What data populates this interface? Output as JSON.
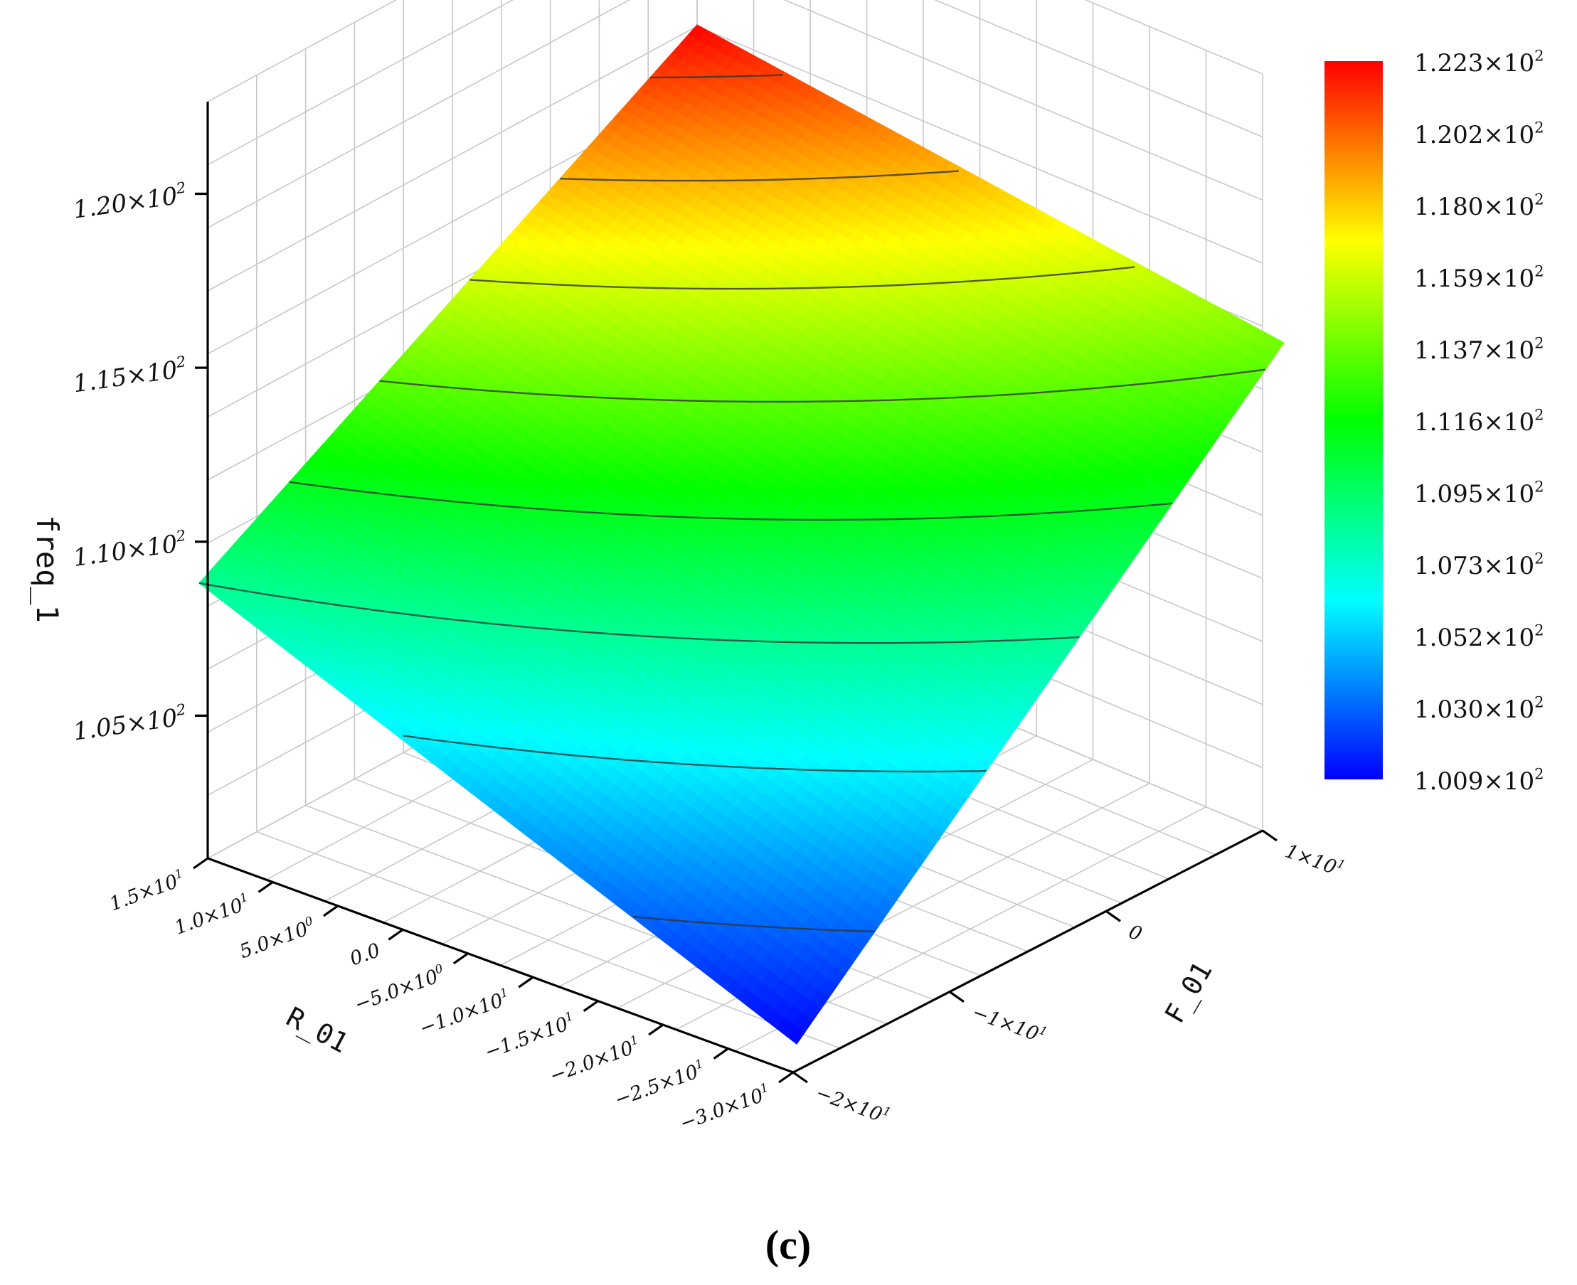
{
  "chart_data": {
    "type": "surface3d",
    "panel_label": "(c)",
    "zlabel": "freq_1",
    "xlabel": "R_01",
    "ylabel": "F_01",
    "z_ticks": [
      {
        "mant": "1.05",
        "exp": "2",
        "value": 105
      },
      {
        "mant": "1.10",
        "exp": "2",
        "value": 110
      },
      {
        "mant": "1.15",
        "exp": "2",
        "value": 115
      },
      {
        "mant": "1.20",
        "exp": "2",
        "value": 120
      }
    ],
    "r_ticks": [
      {
        "mant": "1.5",
        "exp": "1",
        "value": 15
      },
      {
        "mant": "1.0",
        "exp": "1",
        "value": 10
      },
      {
        "mant": "5.0",
        "exp": "0",
        "value": 5
      },
      {
        "mant": "0.0",
        "exp": "",
        "value": 0
      },
      {
        "mant": "−5.0",
        "exp": "0",
        "value": -5
      },
      {
        "mant": "−1.0",
        "exp": "1",
        "value": -10
      },
      {
        "mant": "−1.5",
        "exp": "1",
        "value": -15
      },
      {
        "mant": "−2.0",
        "exp": "1",
        "value": -20
      },
      {
        "mant": "−2.5",
        "exp": "1",
        "value": -25
      },
      {
        "mant": "−3.0",
        "exp": "1",
        "value": -30
      }
    ],
    "f_ticks": [
      {
        "mant": "1",
        "exp": "1",
        "value": 10
      },
      {
        "mant": "0",
        "exp": "",
        "value": 0
      },
      {
        "mant": "−1",
        "exp": "1",
        "value": -10
      },
      {
        "mant": "−2",
        "exp": "1",
        "value": -20
      }
    ],
    "colorbar": {
      "ticks": [
        {
          "mant": "1.223",
          "exp": "2",
          "value": 122.3
        },
        {
          "mant": "1.202",
          "exp": "2",
          "value": 120.2
        },
        {
          "mant": "1.180",
          "exp": "2",
          "value": 118.0
        },
        {
          "mant": "1.159",
          "exp": "2",
          "value": 115.9
        },
        {
          "mant": "1.137",
          "exp": "2",
          "value": 113.7
        },
        {
          "mant": "1.116",
          "exp": "2",
          "value": 111.6
        },
        {
          "mant": "1.095",
          "exp": "2",
          "value": 109.5
        },
        {
          "mant": "1.073",
          "exp": "2",
          "value": 107.3
        },
        {
          "mant": "1.052",
          "exp": "2",
          "value": 105.2
        },
        {
          "mant": "1.030",
          "exp": "2",
          "value": 103.0
        },
        {
          "mant": "1.009",
          "exp": "2",
          "value": 100.9
        }
      ],
      "min": 100.9,
      "max": 122.3,
      "colors": [
        "#0000ff",
        "#00ffff",
        "#00ff00",
        "#ffff00",
        "#ff0000"
      ]
    },
    "surface_corners": {
      "R_min_F_min": 100.9,
      "R_max_F_max": 122.3,
      "R_max_F_min": 108.5,
      "R_min_F_max": 114.0
    },
    "contour_levels": [
      103,
      106,
      108.5,
      111,
      113.5,
      116,
      118.5,
      121
    ],
    "grid": true
  }
}
